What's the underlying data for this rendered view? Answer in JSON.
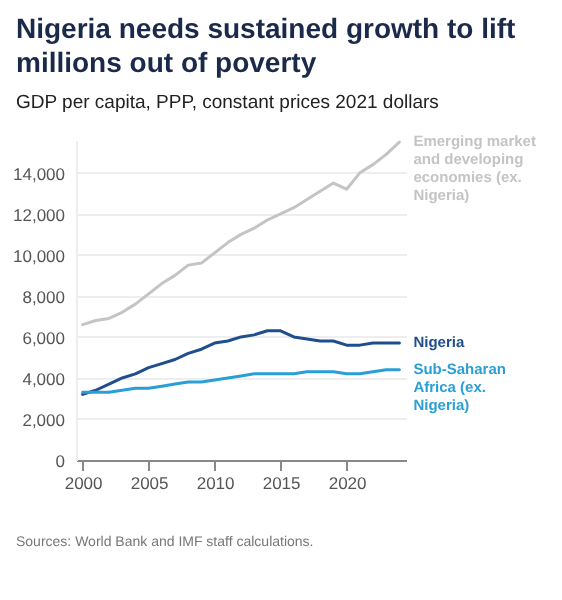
{
  "chart_data": {
    "type": "line",
    "title": "Nigeria needs sustained growth to lift millions out of poverty",
    "subtitle": "GDP per capita, PPP, constant prices 2021 dollars",
    "x": [
      2000,
      2001,
      2002,
      2003,
      2004,
      2005,
      2006,
      2007,
      2008,
      2009,
      2010,
      2011,
      2012,
      2013,
      2014,
      2015,
      2016,
      2017,
      2018,
      2019,
      2020,
      2021,
      2022,
      2023,
      2024
    ],
    "series": [
      {
        "name": "Emerging market and developing economies (ex. Nigeria)",
        "color": "#c4c4c4",
        "values": [
          6600,
          6800,
          6900,
          7200,
          7600,
          8100,
          8600,
          9000,
          9500,
          9600,
          10100,
          10600,
          11000,
          11300,
          11700,
          12000,
          12300,
          12700,
          13100,
          13500,
          13200,
          14000,
          14400,
          14900,
          15500
        ]
      },
      {
        "name": "Nigeria",
        "color": "#1f4e8c",
        "values": [
          3200,
          3400,
          3700,
          4000,
          4200,
          4500,
          4700,
          4900,
          5200,
          5400,
          5700,
          5800,
          6000,
          6100,
          6300,
          6300,
          6000,
          5900,
          5800,
          5800,
          5600,
          5600,
          5700,
          5700,
          5700
        ]
      },
      {
        "name": "Sub-Saharan Africa (ex. Nigeria)",
        "color": "#2a9fd6",
        "values": [
          3300,
          3300,
          3300,
          3400,
          3500,
          3500,
          3600,
          3700,
          3800,
          3800,
          3900,
          4000,
          4100,
          4200,
          4200,
          4200,
          4200,
          4300,
          4300,
          4300,
          4200,
          4200,
          4300,
          4400,
          4400
        ]
      }
    ],
    "xlim": [
      1999.5,
      2024.5
    ],
    "xticks": [
      2000,
      2005,
      2010,
      2015,
      2020
    ],
    "ylim": [
      0,
      15600
    ],
    "yticks": [
      0,
      {
        "value": 2000,
        "label": "2,000"
      },
      {
        "value": 4000,
        "label": "4,000"
      },
      {
        "value": 6000,
        "label": "6,000"
      },
      {
        "value": 8000,
        "label": "8,000"
      },
      {
        "value": 10000,
        "label": "10,000"
      },
      {
        "value": 12000,
        "label": "12,000"
      },
      {
        "value": 14000,
        "label": "14,000"
      }
    ],
    "grid": "y",
    "legend": false,
    "line_style": "solid",
    "annotations": [
      "Sources: World Bank and IMF staff calculations."
    ]
  }
}
